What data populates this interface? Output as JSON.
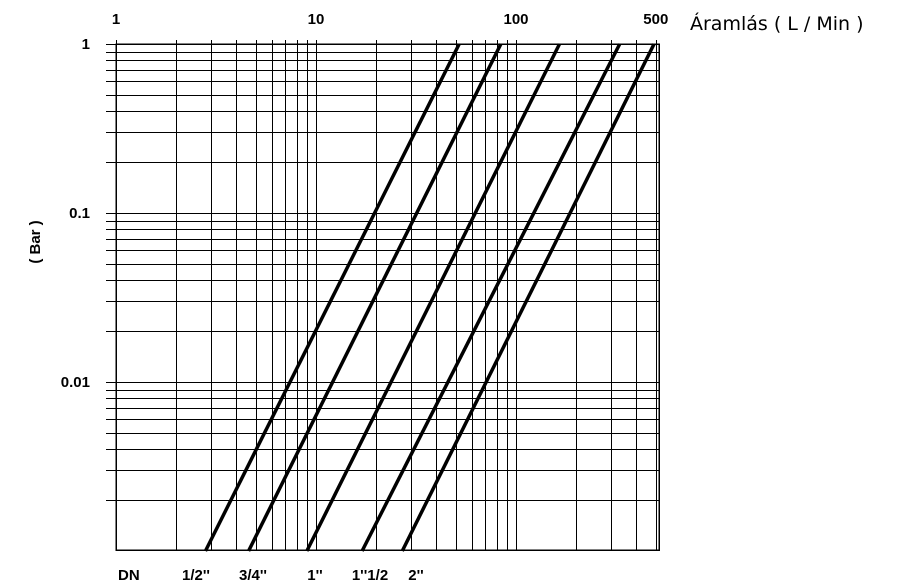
{
  "chart_data": {
    "type": "line",
    "xlabel": "Áramlás ( L / Min )",
    "ylabel": "( Bar )",
    "x_scale": "log",
    "y_scale": "log",
    "xlim": [
      1,
      500
    ],
    "ylim": [
      0.001,
      1
    ],
    "grid": true,
    "x_tick_labels": [
      "1",
      "10",
      "100",
      "500"
    ],
    "y_tick_labels": [
      "1",
      "0.1",
      "0.01"
    ],
    "bottom_label": "DN",
    "series": [
      {
        "name": "1/2''",
        "x": [
          2.8,
          52
        ],
        "y": [
          0.001,
          1
        ]
      },
      {
        "name": "3/4''",
        "x": [
          4.6,
          84
        ],
        "y": [
          0.001,
          1
        ]
      },
      {
        "name": "1''",
        "x": [
          9.0,
          165
        ],
        "y": [
          0.001,
          1
        ]
      },
      {
        "name": "1''1/2",
        "x": [
          17,
          330
        ],
        "y": [
          0.001,
          1
        ]
      },
      {
        "name": "2''",
        "x": [
          27,
          490
        ],
        "y": [
          0.001,
          1
        ]
      }
    ]
  }
}
